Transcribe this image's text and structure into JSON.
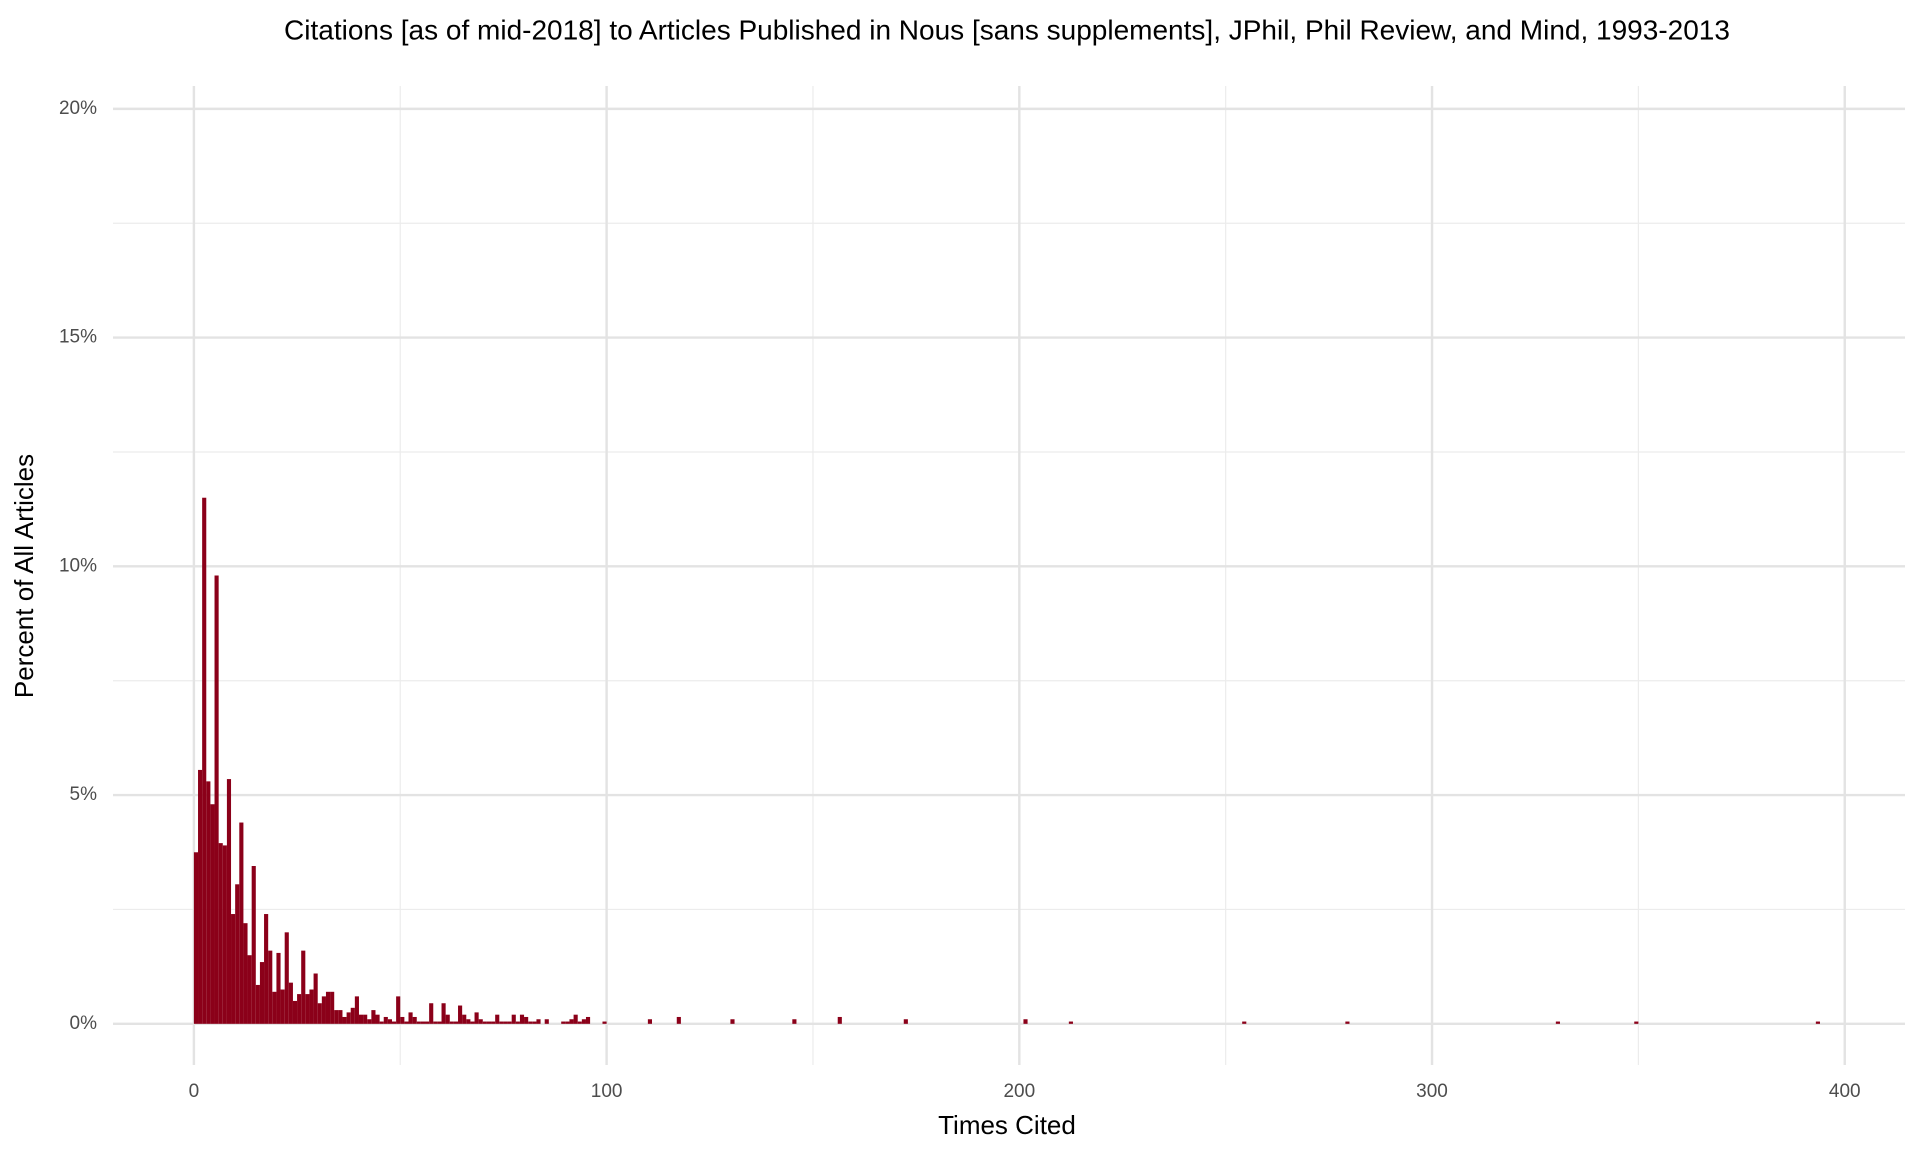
{
  "chart_data": {
    "type": "histogram",
    "title": "Citations [as of mid-2018] to Articles Published in Nous [sans supplements], JPhil, Phil Review, and Mind, 1993-2013",
    "x_label": "Times Cited",
    "y_label": "Percent of All Articles",
    "color": "#8b0019",
    "bins": [
      0,
      1,
      2,
      3,
      4,
      5,
      6,
      7,
      8,
      9,
      10,
      11,
      12,
      13,
      14,
      15,
      16,
      17,
      18,
      19,
      20,
      21,
      22,
      23,
      24,
      25,
      26,
      27,
      28,
      29,
      30,
      31,
      32,
      33,
      34,
      35,
      36,
      37,
      38,
      39,
      40,
      41,
      42,
      43,
      44,
      45,
      46,
      47,
      48,
      49,
      50,
      51,
      52,
      53,
      54,
      55,
      56,
      57,
      58,
      59,
      60,
      61,
      62,
      63,
      64,
      65,
      66,
      67,
      68,
      69,
      70,
      71,
      72,
      73,
      74,
      75,
      76,
      77,
      78,
      79,
      80,
      81,
      82,
      83,
      84,
      85,
      86,
      87,
      88,
      89,
      90,
      91,
      92,
      93,
      94,
      95,
      96,
      97,
      98,
      99,
      100,
      110,
      111,
      117,
      118,
      130,
      131,
      145,
      146,
      156,
      157,
      172,
      173,
      201,
      202,
      212,
      213,
      254,
      255,
      279,
      280,
      330,
      331,
      349,
      350,
      393,
      394
    ],
    "values": [
      3.75,
      5.55,
      11.5,
      5.3,
      4.8,
      9.8,
      3.95,
      3.9,
      5.35,
      2.4,
      3.05,
      4.4,
      2.2,
      1.5,
      3.45,
      0.85,
      1.35,
      2.4,
      1.6,
      0.7,
      1.55,
      0.75,
      2.0,
      0.9,
      0.5,
      0.65,
      1.6,
      0.65,
      0.75,
      1.1,
      0.45,
      0.6,
      0.7,
      0.7,
      0.3,
      0.3,
      0.15,
      0.25,
      0.35,
      0.6,
      0.2,
      0.2,
      0.1,
      0.3,
      0.2,
      0.05,
      0.15,
      0.1,
      0.05,
      0.6,
      0.15,
      0.05,
      0.25,
      0.15,
      0.05,
      0.05,
      0.05,
      0.45,
      0.05,
      0.05,
      0.45,
      0.2,
      0.05,
      0.05,
      0.4,
      0.2,
      0.1,
      0.05,
      0.25,
      0.1,
      0.05,
      0.05,
      0.05,
      0.2,
      0.05,
      0.05,
      0.05,
      0.2,
      0.05,
      0.2,
      0.15,
      0.05,
      0.05,
      0.1,
      0,
      0.1,
      0,
      0,
      0,
      0.05,
      0.05,
      0.1,
      0.2,
      0.05,
      0.1,
      0.15,
      0,
      0,
      0,
      0.05,
      0,
      0.1,
      0,
      0.15,
      0,
      0.1,
      0,
      0.1,
      0,
      0.15,
      0,
      0.1,
      0,
      0.1,
      0,
      0.05,
      0,
      0.05,
      0,
      0.05,
      0,
      0.05,
      0,
      0.05,
      0,
      0.05
    ],
    "xlim": [
      -19.6,
      414.6
    ],
    "ylim": [
      -0.9,
      20.5
    ],
    "xticks": [
      0,
      100,
      200,
      300,
      400
    ],
    "xminor": [
      50,
      150,
      250,
      350
    ],
    "yticks": [
      {
        "value": 0,
        "label": "0%"
      },
      {
        "value": 5,
        "label": "5%"
      },
      {
        "value": 10,
        "label": "10%"
      },
      {
        "value": 15,
        "label": "15%"
      },
      {
        "value": 20,
        "label": "20%"
      }
    ],
    "yminor": [
      2.5,
      7.5,
      12.5,
      17.5
    ],
    "grid": true
  }
}
